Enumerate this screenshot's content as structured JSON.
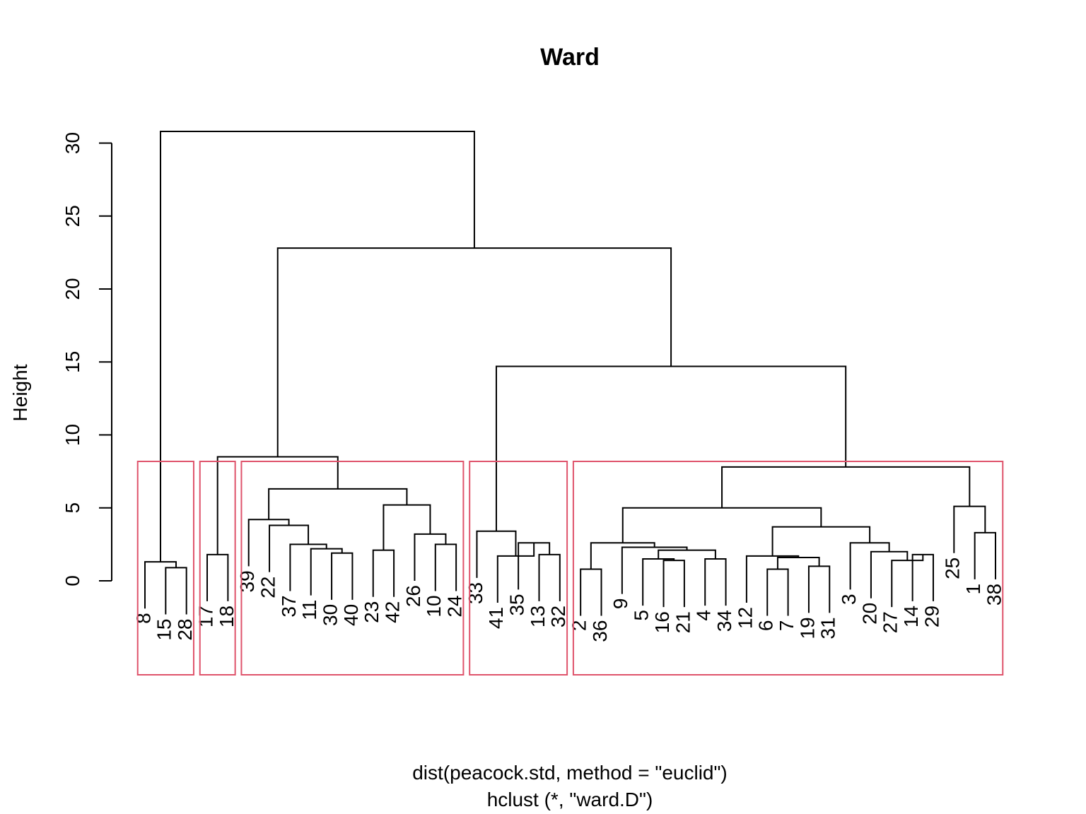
{
  "chart_data": {
    "type": "dendrogram",
    "title": "Ward",
    "ylabel": "Height",
    "xlabel": "dist(peacock.std, method = \"euclid\")",
    "sublabel": "hclust (*, \"ward.D\")",
    "ylim": [
      0,
      30
    ],
    "yticks": [
      "0",
      "5",
      "10",
      "15",
      "20",
      "25",
      "30"
    ],
    "leaves": [
      "8",
      "15",
      "28",
      "17",
      "18",
      "39",
      "22",
      "37",
      "11",
      "30",
      "40",
      "23",
      "42",
      "26",
      "10",
      "24",
      "33",
      "41",
      "35",
      "13",
      "32",
      "2",
      "36",
      "9",
      "5",
      "16",
      "21",
      "4",
      "34",
      "12",
      "6",
      "7",
      "19",
      "31",
      "3",
      "20",
      "27",
      "14",
      "29",
      "25",
      "1",
      "38"
    ],
    "merges": [
      [
        "15",
        "28",
        0.9
      ],
      [
        "8",
        "c1",
        1.3
      ],
      [
        "17",
        "18",
        1.8
      ],
      [
        "30",
        "40",
        1.9
      ],
      [
        "11",
        "c4",
        2.2
      ],
      [
        "37",
        "c5",
        2.5
      ],
      [
        "22",
        "c6",
        3.8
      ],
      [
        "39",
        "c7",
        4.2
      ],
      [
        "23",
        "42",
        2.1
      ],
      [
        "10",
        "24",
        2.5
      ],
      [
        "26",
        "c10",
        3.2
      ],
      [
        "c9",
        "c11",
        5.2
      ],
      [
        "c8",
        "c12",
        6.3
      ],
      [
        "c3",
        "c13",
        8.5
      ],
      [
        "13",
        "32",
        1.8
      ],
      [
        "35",
        "c15",
        2.6
      ],
      [
        "41",
        "c16",
        1.7
      ],
      [
        "33",
        "c17",
        3.4
      ],
      [
        "2",
        "36",
        0.8
      ],
      [
        "16",
        "21",
        1.4
      ],
      [
        "5",
        "c20",
        1.5
      ],
      [
        "4",
        "34",
        1.5
      ],
      [
        "c21",
        "c22",
        2.1
      ],
      [
        "9",
        "c23",
        2.3
      ],
      [
        "c19",
        "c24",
        2.6
      ],
      [
        "6",
        "7",
        0.8
      ],
      [
        "19",
        "31",
        1.0
      ],
      [
        "c26",
        "c27",
        1.6
      ],
      [
        "12",
        "c28",
        1.7
      ],
      [
        "14",
        "29",
        1.8
      ],
      [
        "27",
        "c30",
        1.4
      ],
      [
        "20",
        "c31",
        2.0
      ],
      [
        "3",
        "c32",
        2.6
      ],
      [
        "c29",
        "c33",
        3.7
      ],
      [
        "c25",
        "c34",
        5.0
      ],
      [
        "1",
        "38",
        3.3
      ],
      [
        "25",
        "c36",
        5.1
      ],
      [
        "c35",
        "c37",
        7.8
      ],
      [
        "c18",
        "c38",
        14.7
      ],
      [
        "c14",
        "c39",
        22.8
      ],
      [
        "c2",
        "c40",
        30.8
      ]
    ],
    "clusters": [
      [
        "8",
        "15",
        "28"
      ],
      [
        "17",
        "18"
      ],
      [
        "39",
        "22",
        "37",
        "11",
        "30",
        "40",
        "23",
        "42",
        "26",
        "10",
        "24"
      ],
      [
        "33",
        "41",
        "35",
        "13",
        "32"
      ],
      [
        "2",
        "36",
        "9",
        "5",
        "16",
        "21",
        "4",
        "34",
        "12",
        "6",
        "7",
        "19",
        "31",
        "3",
        "20",
        "27",
        "14",
        "29",
        "25",
        "1",
        "38"
      ]
    ],
    "colors": {
      "tree": "#000000",
      "cluster_box": "#df536b"
    }
  }
}
